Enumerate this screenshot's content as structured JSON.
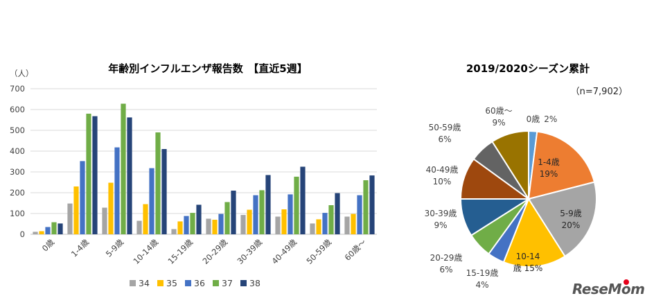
{
  "chart_data": [
    {
      "type": "bar",
      "title": "年齢別インフルエンザ報告数　【直近5週】",
      "ylabel": "（人）",
      "xlabel": "",
      "ylim": [
        0,
        700
      ],
      "yticks": [
        0,
        100,
        200,
        300,
        400,
        500,
        600,
        700
      ],
      "grid": true,
      "legend_position": "bottom",
      "categories": [
        "0歳",
        "1-4歳",
        "5-9歳",
        "10-14歳",
        "15-19歳",
        "20-29歳",
        "30-39歳",
        "40-49歳",
        "50-59歳",
        "60歳～"
      ],
      "series": [
        {
          "name": "34",
          "color": "#a5a5a5",
          "values": [
            12,
            148,
            128,
            65,
            25,
            75,
            93,
            85,
            52,
            85
          ]
        },
        {
          "name": "35",
          "color": "#ffc000",
          "values": [
            15,
            230,
            248,
            145,
            62,
            70,
            118,
            120,
            72,
            98
          ]
        },
        {
          "name": "36",
          "color": "#4472c4",
          "values": [
            35,
            352,
            418,
            318,
            88,
            98,
            188,
            192,
            103,
            188
          ]
        },
        {
          "name": "37",
          "color": "#70ad47",
          "values": [
            58,
            580,
            628,
            490,
            103,
            155,
            212,
            277,
            140,
            260
          ]
        },
        {
          "name": "38",
          "color": "#264478",
          "values": [
            52,
            568,
            562,
            410,
            142,
            210,
            285,
            325,
            198,
            283
          ]
        }
      ]
    },
    {
      "type": "pie",
      "title": "2019/2020シーズン累計",
      "subtitle": "（n=7,902）",
      "slices": [
        {
          "label": "0歳",
          "pct_label": "2%",
          "value": 2,
          "color": "#5b9bd5"
        },
        {
          "label": "1-4歳",
          "pct_label": "19%",
          "value": 19,
          "color": "#ed7d31"
        },
        {
          "label": "5-9歳",
          "pct_label": "20%",
          "value": 20,
          "color": "#a5a5a5"
        },
        {
          "label": "10-14",
          "pct_label": "歳 15%",
          "value": 15,
          "color": "#ffc000"
        },
        {
          "label": "15-19歳",
          "pct_label": "4%",
          "value": 4,
          "color": "#4472c4"
        },
        {
          "label": "20-29歳",
          "pct_label": "6%",
          "value": 6,
          "color": "#70ad47"
        },
        {
          "label": "30-39歳",
          "pct_label": "9%",
          "value": 9,
          "color": "#255e91"
        },
        {
          "label": "40-49歳",
          "pct_label": "10%",
          "value": 10,
          "color": "#9e480e"
        },
        {
          "label": "50-59歳",
          "pct_label": "6%",
          "value": 6,
          "color": "#636363"
        },
        {
          "label": "60歳～",
          "pct_label": "9%",
          "value": 9,
          "color": "#997300"
        }
      ]
    }
  ],
  "watermark": "ReseMom"
}
